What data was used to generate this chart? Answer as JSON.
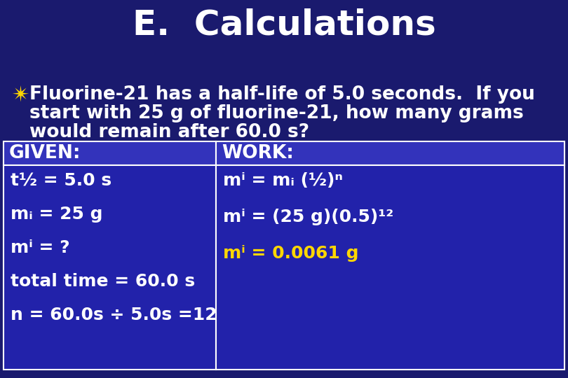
{
  "title": "E.  Calculations",
  "title_color": "#FFFFFF",
  "title_fontsize": 36,
  "bg_color": "#1a1a6e",
  "bullet_star_color": "#FFD700",
  "bullet_lines": [
    "Fluorine-21 has a half-life of 5.0 seconds.  If you",
    "start with 25 g of fluorine-21, how many grams",
    "would remain after 60.0 s?"
  ],
  "bullet_fontsize": 19,
  "bullet_text_color": "#FFFFFF",
  "table_header_bg": "#3333bb",
  "table_cell_bg": "#2222aa",
  "table_border_color": "#FFFFFF",
  "given_header": "GIVEN:",
  "work_header": "WORK:",
  "given_lines": [
    "t½ = 5.0 s",
    "mᵢ = 25 g",
    "mⁱ = ?",
    "total time = 60.0 s",
    "n = 60.0s ÷ 5.0s =12"
  ],
  "work_lines": [
    "mⁱ = mᵢ (½)ⁿ",
    "mⁱ = (25 g)(0.5)¹²",
    "mⁱ = 0.0061 g"
  ],
  "work_line_colors": [
    "#FFFFFF",
    "#FFFFFF",
    "#FFD700"
  ],
  "answer_color": "#FFD700",
  "table_text_color": "#FFFFFF",
  "table_fontsize": 18,
  "header_fontsize": 19
}
